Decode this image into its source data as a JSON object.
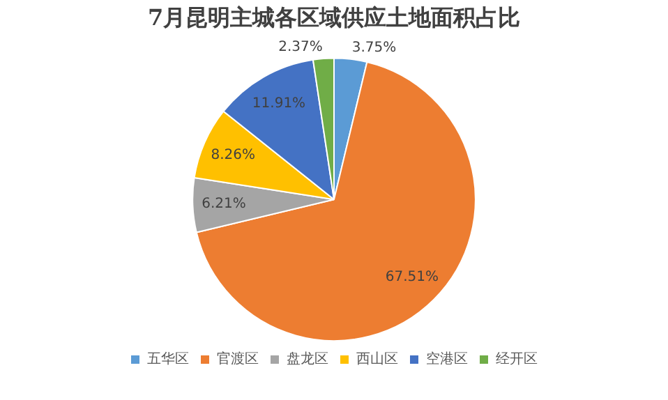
{
  "chart_data": {
    "type": "pie",
    "title": "7月昆明主城各区域供应土地面积占比",
    "categories": [
      "五华区",
      "官渡区",
      "盘龙区",
      "西山区",
      "空港区",
      "经开区"
    ],
    "values": [
      3.75,
      67.51,
      6.21,
      8.26,
      11.91,
      2.37
    ],
    "colors": [
      "#5b9bd5",
      "#ed7d31",
      "#a5a5a5",
      "#ffc000",
      "#4472c4",
      "#70ad47"
    ],
    "value_labels": [
      "3.75%",
      "67.51%",
      "6.21%",
      "8.26%",
      "11.91%",
      "2.37%"
    ],
    "legend": "bottom"
  }
}
